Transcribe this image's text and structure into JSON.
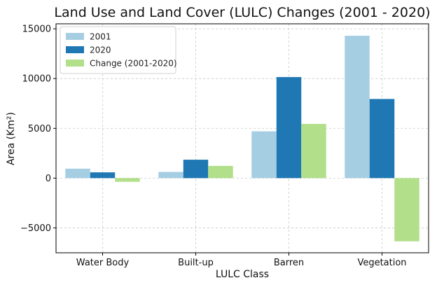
{
  "chart_data": {
    "type": "bar",
    "title": "Land Use and Land Cover (LULC) Changes (2001 - 2020)",
    "xlabel": "LULC Class",
    "ylabel": "Area (Km²)",
    "categories": [
      "Water Body",
      "Built-up",
      "Barren",
      "Vegetation"
    ],
    "series": [
      {
        "name": "2001",
        "color": "#a6cee3",
        "values": [
          950,
          620,
          4700,
          14300
        ]
      },
      {
        "name": "2020",
        "color": "#1f78b4",
        "values": [
          580,
          1850,
          10150,
          7950
        ]
      },
      {
        "name": "Change (2001-2020)",
        "color": "#b2df8a",
        "values": [
          -370,
          1230,
          5450,
          -6350
        ]
      }
    ],
    "ylim": [
      -7500,
      15500
    ],
    "yticks": [
      -5000,
      0,
      5000,
      10000,
      15000
    ],
    "ytick_labels": [
      "−5000",
      "0",
      "5000",
      "10000",
      "15000"
    ],
    "grid": true,
    "legend_position": "top-left"
  }
}
